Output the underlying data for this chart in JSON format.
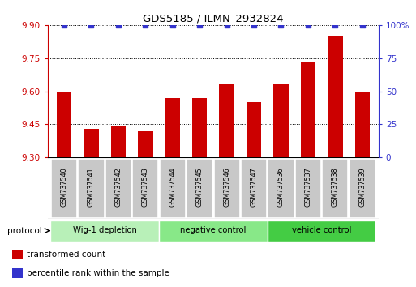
{
  "title": "GDS5185 / ILMN_2932824",
  "samples": [
    "GSM737540",
    "GSM737541",
    "GSM737542",
    "GSM737543",
    "GSM737544",
    "GSM737545",
    "GSM737546",
    "GSM737547",
    "GSM737536",
    "GSM737537",
    "GSM737538",
    "GSM737539"
  ],
  "bar_values": [
    9.6,
    9.43,
    9.44,
    9.42,
    9.57,
    9.57,
    9.63,
    9.55,
    9.63,
    9.73,
    9.85,
    9.6
  ],
  "percentile_values": [
    100,
    100,
    100,
    100,
    100,
    100,
    100,
    100,
    100,
    100,
    100,
    100
  ],
  "bar_color": "#cc0000",
  "percentile_color": "#3333cc",
  "ylim_left": [
    9.3,
    9.9
  ],
  "ylim_right": [
    0,
    100
  ],
  "yticks_left": [
    9.3,
    9.45,
    9.6,
    9.75,
    9.9
  ],
  "yticks_right": [
    0,
    25,
    50,
    75,
    100
  ],
  "groups": [
    {
      "label": "Wig-1 depletion",
      "start": 0,
      "end": 4
    },
    {
      "label": "negative control",
      "start": 4,
      "end": 8
    },
    {
      "label": "vehicle control",
      "start": 8,
      "end": 12
    }
  ],
  "group_colors": [
    "#b8f0b8",
    "#88e888",
    "#44cc44"
  ],
  "legend_items": [
    {
      "color": "#cc0000",
      "label": "transformed count"
    },
    {
      "color": "#3333cc",
      "label": "percentile rank within the sample"
    }
  ],
  "left_tick_color": "#cc0000",
  "right_tick_color": "#3333cc",
  "protocol_label": "protocol",
  "bar_bottom": 9.3,
  "sample_box_color": "#c8c8c8",
  "sample_box_edge": "#ffffff"
}
